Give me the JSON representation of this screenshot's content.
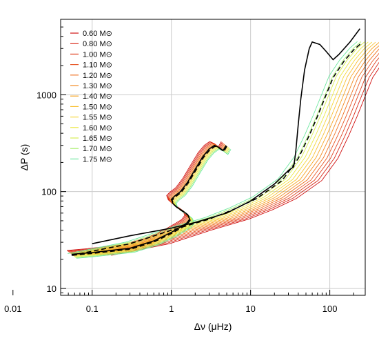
{
  "chart_data": {
    "type": "line",
    "title": "",
    "xlabel": "Δν (μHz)",
    "ylabel": "ΔP (s)",
    "xscale": "log",
    "yscale": "log",
    "xlim": [
      0.04,
      280
    ],
    "ylim": [
      8.5,
      6000
    ],
    "xticks": [
      0.01,
      0.1,
      1,
      10,
      100
    ],
    "xtick_labels": [
      "0.01",
      "0.1",
      "1",
      "10",
      "100"
    ],
    "yticks": [
      10,
      100,
      1000
    ],
    "ytick_labels": [
      "10",
      "100",
      "1000"
    ],
    "grid": true,
    "legend_position": "top-left",
    "series": [
      {
        "name": "0.60 M⊙",
        "color": "#d01010"
      },
      {
        "name": "0.80 M⊙",
        "color": "#d82818"
      },
      {
        "name": "1.00 M⊙",
        "color": "#e04020"
      },
      {
        "name": "1.10 M⊙",
        "color": "#e85828"
      },
      {
        "name": "1.20 M⊙",
        "color": "#ef7020"
      },
      {
        "name": "1.30 M⊙",
        "color": "#f48a20"
      },
      {
        "name": "1.40 M⊙",
        "color": "#f7a525"
      },
      {
        "name": "1.50 M⊙",
        "color": "#f8bf30"
      },
      {
        "name": "1.55 M⊙",
        "color": "#f5d63a"
      },
      {
        "name": "1.60 M⊙",
        "color": "#ece845"
      },
      {
        "name": "1.65 M⊙",
        "color": "#d6ee55"
      },
      {
        "name": "1.70 M⊙",
        "color": "#a8ee70"
      },
      {
        "name": "1.75 M⊙",
        "color": "#6ee8a0"
      }
    ],
    "reference_track_solid": [
      [
        0.055,
        22.5
      ],
      [
        0.1,
        23.5
      ],
      [
        0.3,
        26
      ],
      [
        0.6,
        31
      ],
      [
        1.0,
        38
      ],
      [
        1.3,
        43
      ],
      [
        1.55,
        47
      ],
      [
        1.7,
        52
      ],
      [
        1.6,
        58
      ],
      [
        1.4,
        63
      ],
      [
        1.2,
        68
      ],
      [
        1.05,
        75
      ],
      [
        1.0,
        83
      ],
      [
        1.1,
        90
      ],
      [
        1.3,
        100
      ],
      [
        1.6,
        125
      ],
      [
        2.0,
        170
      ],
      [
        2.5,
        230
      ],
      [
        3.0,
        275
      ],
      [
        3.5,
        300
      ],
      [
        4.0,
        285
      ],
      [
        4.5,
        265
      ],
      [
        4.8,
        290
      ],
      [
        4.9,
        300
      ]
    ],
    "reference_track_dashed": [
      [
        0.055,
        22.5
      ],
      [
        0.1,
        23.5
      ],
      [
        0.3,
        26
      ],
      [
        0.6,
        31
      ],
      [
        1.0,
        38
      ],
      [
        1.3,
        43
      ],
      [
        1.55,
        47
      ],
      [
        1.7,
        52
      ],
      [
        1.6,
        58
      ],
      [
        1.4,
        63
      ],
      [
        1.2,
        68
      ],
      [
        1.05,
        75
      ],
      [
        1.0,
        83
      ],
      [
        1.1,
        90
      ],
      [
        1.3,
        100
      ],
      [
        1.6,
        125
      ],
      [
        2.0,
        170
      ],
      [
        2.5,
        230
      ],
      [
        3.0,
        275
      ],
      [
        3.5,
        300
      ],
      [
        4.0,
        285
      ],
      [
        4.5,
        265
      ],
      [
        4.8,
        290
      ],
      [
        4.9,
        300
      ]
    ],
    "upper_branch_solid": [
      [
        0.1,
        29
      ],
      [
        0.3,
        35
      ],
      [
        1.0,
        42
      ],
      [
        2.0,
        48
      ],
      [
        5.0,
        60
      ],
      [
        10,
        80
      ],
      [
        20,
        120
      ],
      [
        30,
        165
      ],
      [
        35,
        180
      ],
      [
        37,
        250
      ],
      [
        40,
        500
      ],
      [
        43,
        900
      ],
      [
        48,
        1800
      ],
      [
        55,
        3000
      ],
      [
        60,
        3500
      ],
      [
        75,
        3300
      ],
      [
        90,
        2800
      ],
      [
        110,
        2300
      ],
      [
        130,
        2600
      ],
      [
        180,
        3500
      ],
      [
        240,
        4800
      ]
    ],
    "upper_branch_dashed": [
      [
        0.055,
        22
      ],
      [
        0.3,
        29
      ],
      [
        1.0,
        40
      ],
      [
        3.0,
        52
      ],
      [
        6.0,
        65
      ],
      [
        12,
        85
      ],
      [
        25,
        130
      ],
      [
        40,
        220
      ],
      [
        55,
        380
      ],
      [
        70,
        600
      ],
      [
        90,
        1000
      ],
      [
        110,
        1500
      ],
      [
        150,
        2200
      ],
      [
        200,
        2900
      ],
      [
        250,
        3400
      ]
    ]
  }
}
